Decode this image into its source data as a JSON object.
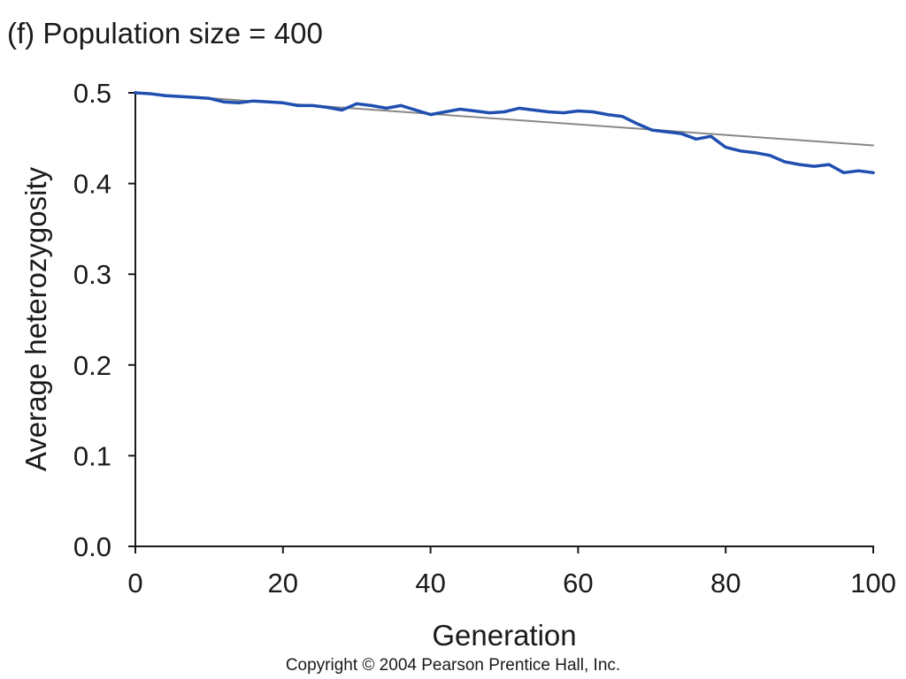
{
  "chart_data": {
    "type": "line",
    "title": "(f) Population size = 400",
    "xlabel": "Generation",
    "ylabel": "Average heterozygosity",
    "xlim": [
      0,
      100
    ],
    "ylim": [
      0,
      0.5
    ],
    "x_ticks": [
      "0",
      "20",
      "40",
      "60",
      "80",
      "100"
    ],
    "y_ticks": [
      "0.0",
      "0.1",
      "0.2",
      "0.3",
      "0.4",
      "0.5"
    ],
    "grid": false,
    "legend": "none",
    "colors": {
      "simulated": "#1f4fb0",
      "expected": "#888888",
      "axis": "#1a1a1a"
    },
    "series": [
      {
        "kind": "expected",
        "x": [
          0,
          100
        ],
        "y": [
          0.5,
          0.442
        ]
      },
      {
        "kind": "simulated",
        "x": [
          0,
          2,
          4,
          6,
          8,
          10,
          12,
          14,
          16,
          18,
          20,
          22,
          24,
          26,
          28,
          30,
          32,
          34,
          36,
          38,
          40,
          42,
          44,
          46,
          48,
          50,
          52,
          54,
          56,
          58,
          60,
          62,
          64,
          66,
          68,
          70,
          72,
          74,
          76,
          78,
          80,
          82,
          84,
          86,
          88,
          90,
          92,
          94,
          96,
          98,
          100
        ],
        "y": [
          0.5,
          0.499,
          0.497,
          0.496,
          0.495,
          0.494,
          0.49,
          0.489,
          0.491,
          0.49,
          0.489,
          0.486,
          0.486,
          0.484,
          0.481,
          0.488,
          0.486,
          0.483,
          0.486,
          0.481,
          0.476,
          0.479,
          0.482,
          0.48,
          0.478,
          0.479,
          0.483,
          0.481,
          0.479,
          0.478,
          0.48,
          0.479,
          0.476,
          0.474,
          0.466,
          0.459,
          0.457,
          0.455,
          0.449,
          0.452,
          0.44,
          0.436,
          0.434,
          0.431,
          0.424,
          0.421,
          0.419,
          0.421,
          0.412,
          0.414,
          0.412
        ]
      }
    ]
  },
  "footer": {
    "copyright": "Copyright © 2004 Pearson Prentice Hall, Inc."
  }
}
